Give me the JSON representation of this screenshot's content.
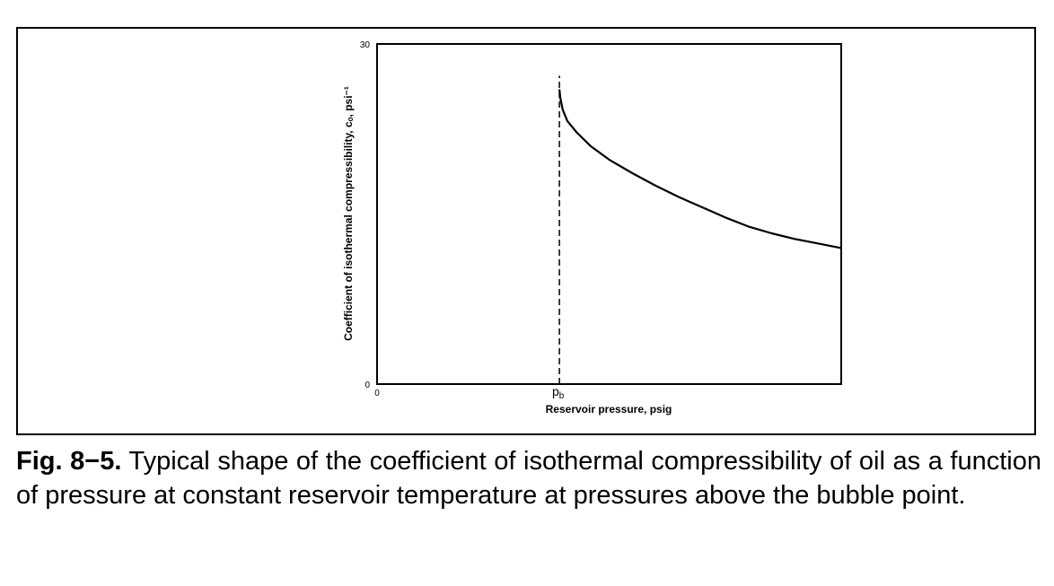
{
  "figure": {
    "caption_label": "Fig. 8−5.",
    "caption_text": "Typical shape of the coefficient of isothermal compressibility of oil as a function of pressure at constant reservoir temperature at pressures above the bubble point."
  },
  "chart_data": {
    "type": "line",
    "title": "",
    "xlabel": "Reservoir pressure, psig",
    "ylabel": "Coefficient of isothermal compressibility, cₒ, psi⁻¹",
    "ylim": [
      0,
      30
    ],
    "y_ticks": [
      "0",
      "30"
    ],
    "x_ticks": [
      "0",
      "pᵦ"
    ],
    "x_tick_labels": {
      "origin": "0",
      "bubble_point": "p",
      "bubble_point_sub": "b"
    },
    "grid": false,
    "legend": "none",
    "annotations": [
      {
        "text": "p_b",
        "type": "vertical-dashed-line",
        "meaning": "bubble-point pressure"
      }
    ],
    "series": [
      {
        "x": [
          0.3928,
          0.395,
          0.4,
          0.41,
          0.43,
          0.46,
          0.5,
          0.55,
          0.6,
          0.65,
          0.7,
          0.75,
          0.8,
          0.85,
          0.9,
          0.95,
          1.0
        ],
        "values": [
          26.0,
          25.2,
          24.2,
          23.2,
          22.2,
          21.0,
          19.8,
          18.6,
          17.5,
          16.5,
          15.6,
          14.7,
          13.9,
          13.3,
          12.8,
          12.4,
          12.0
        ]
      }
    ]
  }
}
